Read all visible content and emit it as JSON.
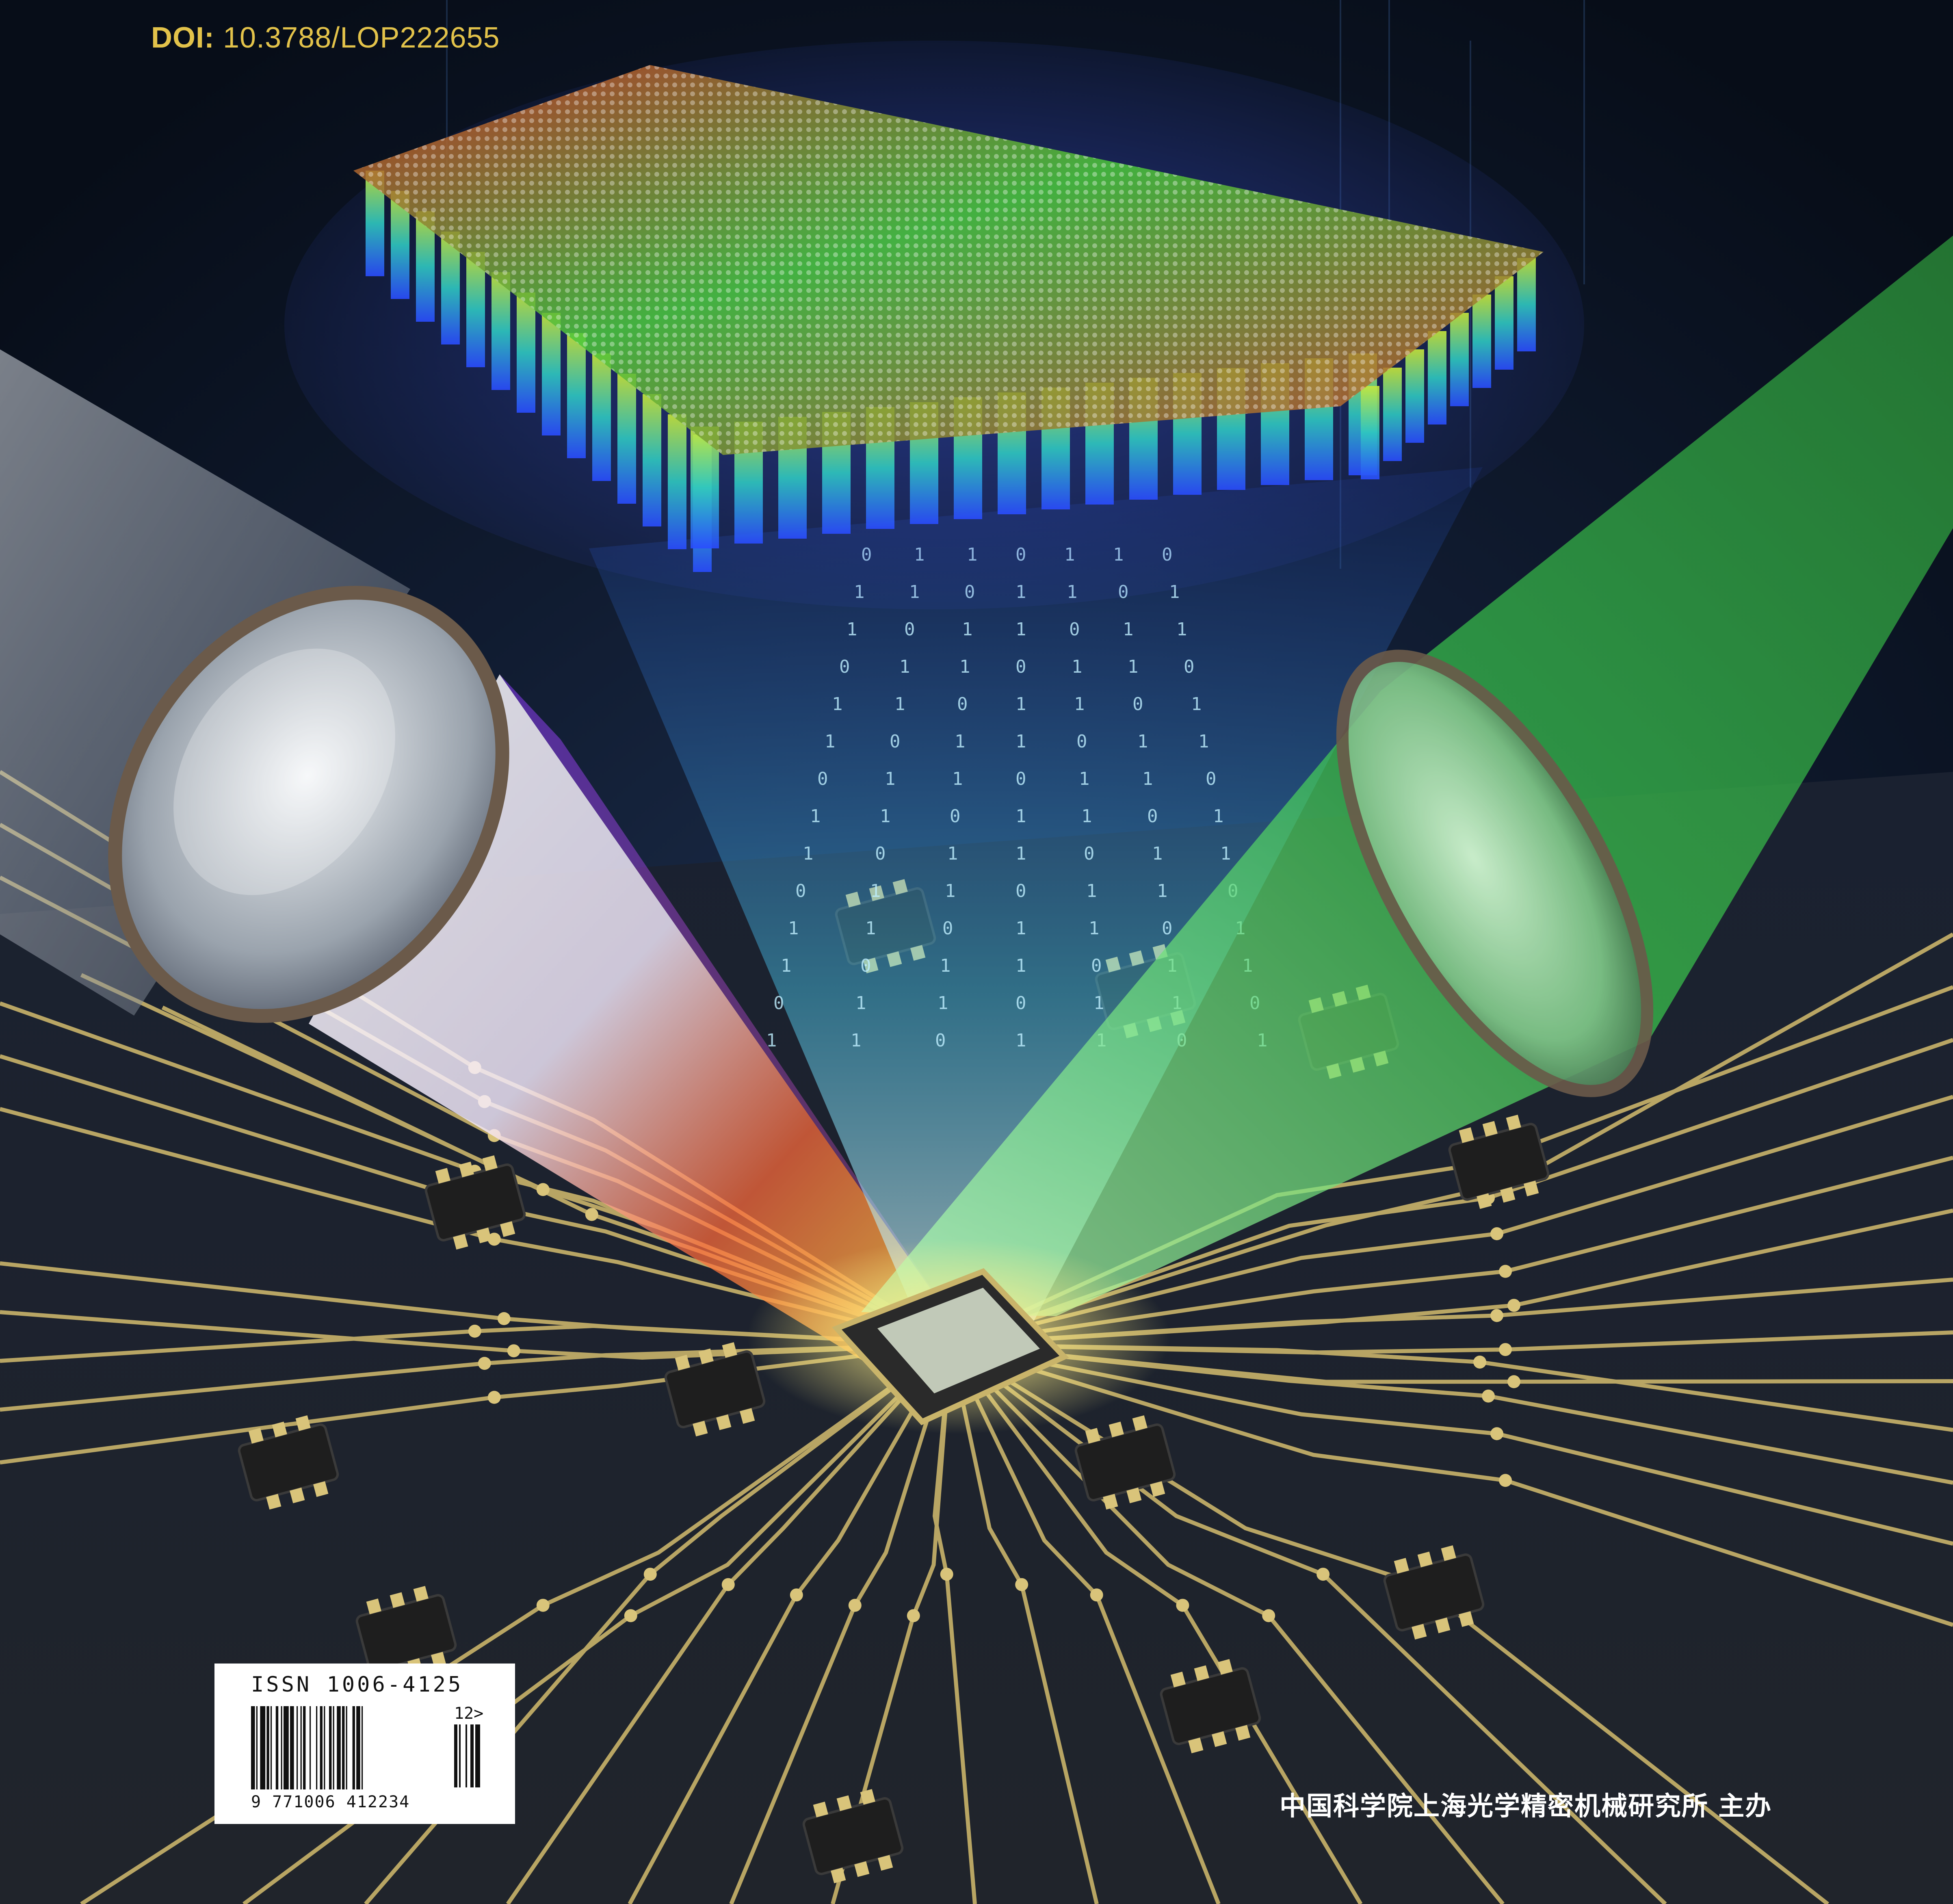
{
  "doi": {
    "label": "DOI:",
    "value": "10.3788/LOP222655"
  },
  "issn": {
    "text": "ISSN 1006-4125",
    "barcode_digits": "9 771006 412234",
    "addon": "12>"
  },
  "publisher": "中国科学院上海光学精密机械研究所 主办",
  "colors": {
    "background": "#0b1322",
    "trace": "#c9b46a",
    "doi_text": "#e2c24a",
    "green_beam": "#2fcf4a",
    "white_beam": "#ffffff",
    "lens_rim": "#6b5a4a"
  },
  "icons": [
    "lens-icon",
    "chip-icon",
    "barcode-icon"
  ]
}
